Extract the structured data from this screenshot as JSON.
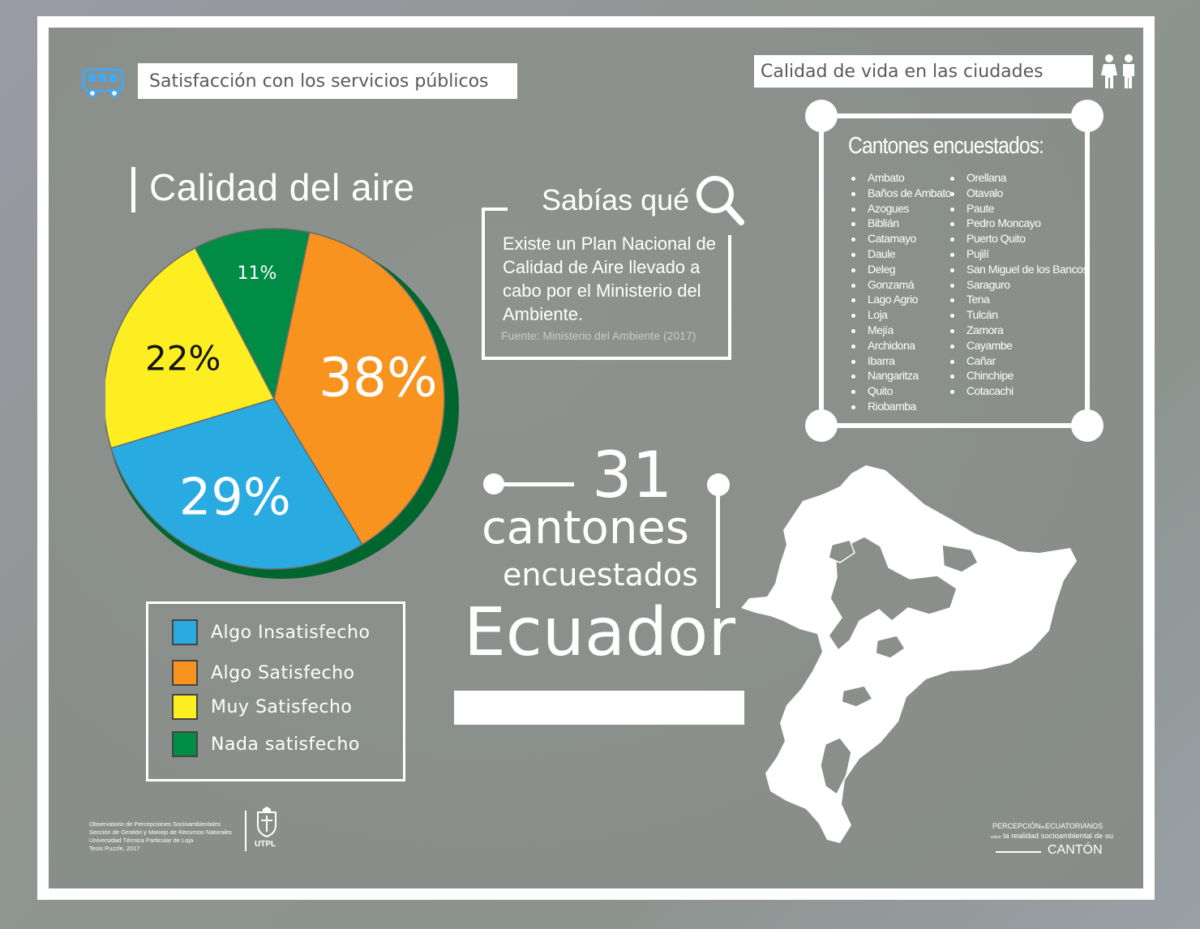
{
  "header": {
    "left_title": "Satisfacción con los servicios públicos",
    "right_title": "Calidad de vida en las ciudades"
  },
  "icons": {
    "bus": "bus-icon",
    "people": "people-icon",
    "search": "magnifier-icon",
    "crest": "utpl-crest-icon",
    "map": "ecuador-map"
  },
  "section_title": "Calidad del aire",
  "chart_data": {
    "type": "pie",
    "title": "Calidad del aire",
    "slices": [
      {
        "label": "Algo Satisfecho",
        "value": 38,
        "display": "38%",
        "color": "#f7931e"
      },
      {
        "label": "Algo Insatisfecho",
        "value": 29,
        "display": "29%",
        "color": "#29abe2"
      },
      {
        "label": "Muy Satisfecho",
        "value": 22,
        "display": "22%",
        "color": "#fcee21"
      },
      {
        "label": "Nada satisfecho",
        "value": 11,
        "display": "11%",
        "color": "#008c45"
      }
    ],
    "legend": [
      {
        "label": "Algo Insatisfecho",
        "color": "#29abe2"
      },
      {
        "label": "Algo Satisfecho",
        "color": "#f7931e"
      },
      {
        "label": "Muy Satisfecho",
        "color": "#fcee21"
      },
      {
        "label": "Nada satisfecho",
        "color": "#008c45"
      }
    ],
    "legend_position": "bottom-left"
  },
  "fact": {
    "title": "Sabías qué",
    "text": "Existe un Plan Nacional de Calidad de Aire llevado a cabo por el Ministerio del Ambiente.",
    "source": "Fuente: Ministerio del Ambiente (2017)"
  },
  "cantones": {
    "title": "Cantones encuestados:",
    "col1": [
      "Ambato",
      "Baños de Ambato",
      "Azogues",
      "Biblián",
      "Catamayo",
      "Daule",
      "Deleg",
      "Gonzamá",
      "Lago Agrio",
      "Loja",
      "Mejía",
      "Archidona",
      "Ibarra",
      "Nangaritza",
      "Quito",
      "Riobamba"
    ],
    "col2": [
      "Orellana",
      "Otavalo",
      "Paute",
      "Pedro Moncayo",
      "Puerto Quito",
      "Pujilí",
      "San Miguel de los Bancos",
      "Saraguro",
      "Tena",
      "Tulcán",
      "Zamora",
      "Cayambe",
      "Cañar",
      "Chinchipe",
      "Cotacachi"
    ]
  },
  "count": {
    "number": "31",
    "word": "cantones",
    "sub": "encuestados",
    "country": "Ecuador"
  },
  "footer": {
    "credits": [
      "Observatorio de Percepciones Socioambientales",
      "Sección de Gestión y Manejo de Recursos Naturales",
      "Universidad Técnica Particular de Loja",
      "Tesis Puzzle, 2017"
    ],
    "utpl": "UTPL",
    "brand_line1a": "PERCEPCIÓN",
    "brand_de": "de",
    "brand_line1b": "ECUATORIANOS",
    "brand_sobre": "sobre",
    "brand_line2": "la realidad socioambiental de su",
    "brand_line3": "CANTÓN"
  }
}
